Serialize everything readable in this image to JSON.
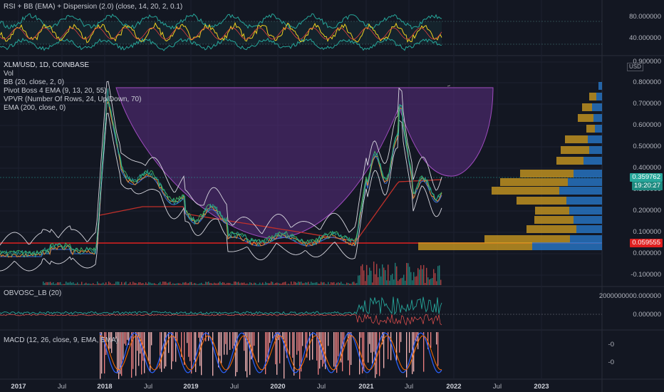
{
  "colors": {
    "background": "#131722",
    "grid": "#1f2430",
    "candle_up": "#26a69a",
    "candle_down": "#ef5350",
    "cup": "#7b3fa0",
    "horizontal_line": "#e02020",
    "vp_up": "#2a7fd4",
    "vp_down": "#d4a020",
    "price_tag": "#26a69a",
    "level_tag": "#e02020"
  },
  "rsi_panel": {
    "legend": "RSI + BB (EMA) + Dispersion (2.0) (close, 14, 20, 2, 0.1)",
    "axis_labels": [
      "80.000000",
      "40.000000"
    ]
  },
  "main_panel": {
    "legend": [
      "XLM/USD, 1D, COINBASE",
      "Vol",
      "BB (20, close, 2, 0)",
      "Pivot Boss 4 EMA (9, 13, 20, 55)",
      "VPVR (Number Of Rows, 24, Up/Down, 70)",
      "EMA (200, close, 0)"
    ],
    "currency_badge": "USD",
    "axis_labels": [
      "0.900000",
      "0.800000",
      "0.700000",
      "0.600000",
      "0.500000",
      "0.400000",
      "0.300000",
      "0.200000",
      "0.100000",
      "0.000000",
      "-0.100000"
    ],
    "price_tag": "0.359762",
    "countdown": "19:20:27",
    "level_tag": "0.059555"
  },
  "obv_panel": {
    "legend": "OBVOSC_LB (20)",
    "axis_labels": [
      "2000000000.000000",
      "0.000000"
    ]
  },
  "macd_panel": {
    "legend": "MACD (12, 26, close, 9, EMA, EMA)",
    "axis_labels": [
      "-0",
      "-0"
    ]
  },
  "time_axis": [
    {
      "label": "2017",
      "major": true
    },
    {
      "label": "Jul",
      "major": false
    },
    {
      "label": "2018",
      "major": true
    },
    {
      "label": "Jul",
      "major": false
    },
    {
      "label": "2019",
      "major": true
    },
    {
      "label": "Jul",
      "major": false
    },
    {
      "label": "2020",
      "major": true
    },
    {
      "label": "Jul",
      "major": false
    },
    {
      "label": "2021",
      "major": true
    },
    {
      "label": "Jul",
      "major": false
    },
    {
      "label": "2022",
      "major": true
    },
    {
      "label": "Jul",
      "major": false
    },
    {
      "label": "2023",
      "major": true
    }
  ]
}
